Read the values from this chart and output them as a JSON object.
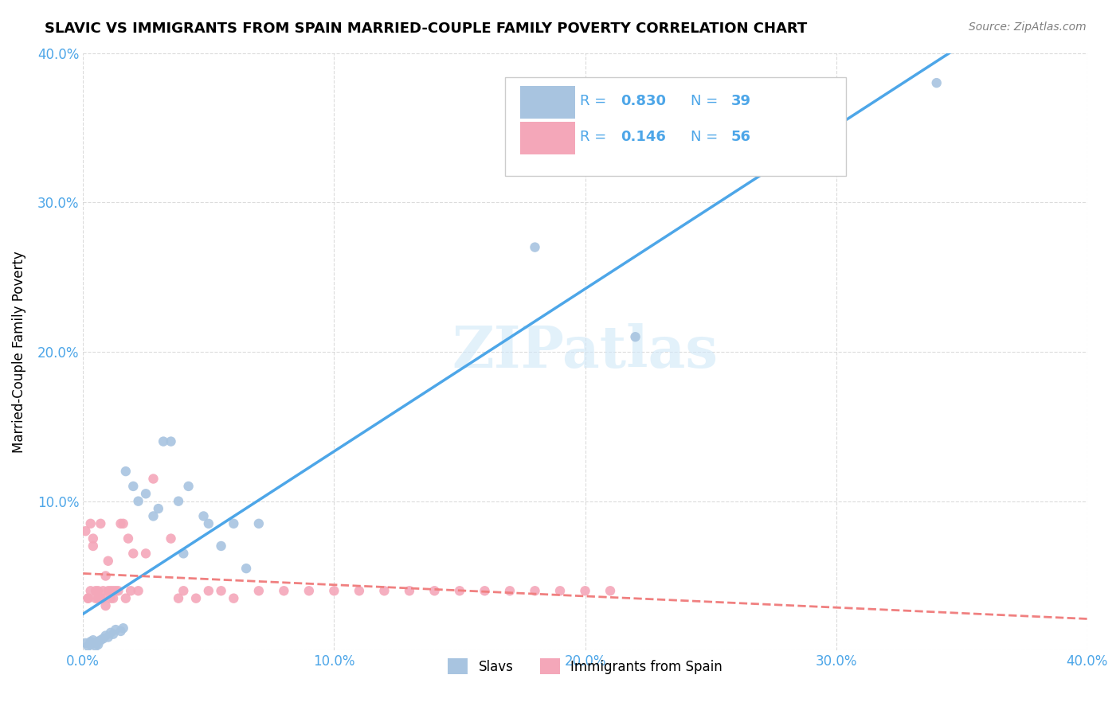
{
  "title": "SLAVIC VS IMMIGRANTS FROM SPAIN MARRIED-COUPLE FAMILY POVERTY CORRELATION CHART",
  "source": "Source: ZipAtlas.com",
  "xlabel": "",
  "ylabel": "Married-Couple Family Poverty",
  "xlim": [
    0,
    0.4
  ],
  "ylim": [
    0,
    0.4
  ],
  "xtick_labels": [
    "0.0%",
    "10.0%",
    "20.0%",
    "30.0%",
    "40.0%"
  ],
  "ytick_labels": [
    "",
    "10.0%",
    "20.0%",
    "30.0%",
    "40.0%"
  ],
  "slavs_color": "#a8c4e0",
  "immigrants_color": "#f4a7b9",
  "slavs_line_color": "#4da6e8",
  "immigrants_line_color": "#f08080",
  "slavs_R": 0.83,
  "slavs_N": 39,
  "immigrants_R": 0.146,
  "immigrants_N": 56,
  "legend_label_slavs": "Slavs",
  "legend_label_immigrants": "Immigrants from Spain",
  "watermark": "ZIPatlas",
  "slavs_x": [
    0.001,
    0.002,
    0.003,
    0.003,
    0.004,
    0.004,
    0.005,
    0.005,
    0.006,
    0.006,
    0.007,
    0.008,
    0.009,
    0.01,
    0.011,
    0.012,
    0.013,
    0.015,
    0.016,
    0.017,
    0.02,
    0.022,
    0.025,
    0.028,
    0.03,
    0.032,
    0.035,
    0.038,
    0.04,
    0.042,
    0.048,
    0.05,
    0.055,
    0.06,
    0.065,
    0.07,
    0.18,
    0.22,
    0.34
  ],
  "slavs_y": [
    0.005,
    0.003,
    0.004,
    0.006,
    0.005,
    0.007,
    0.005,
    0.003,
    0.004,
    0.006,
    0.007,
    0.008,
    0.01,
    0.009,
    0.012,
    0.011,
    0.014,
    0.013,
    0.015,
    0.12,
    0.11,
    0.1,
    0.105,
    0.09,
    0.095,
    0.14,
    0.14,
    0.1,
    0.065,
    0.11,
    0.09,
    0.085,
    0.07,
    0.085,
    0.055,
    0.085,
    0.27,
    0.21,
    0.38
  ],
  "immigrants_x": [
    0.001,
    0.002,
    0.002,
    0.003,
    0.003,
    0.004,
    0.004,
    0.005,
    0.005,
    0.006,
    0.006,
    0.007,
    0.007,
    0.008,
    0.008,
    0.009,
    0.009,
    0.01,
    0.01,
    0.011,
    0.011,
    0.012,
    0.012,
    0.013,
    0.014,
    0.015,
    0.016,
    0.017,
    0.018,
    0.019,
    0.02,
    0.022,
    0.025,
    0.028,
    0.035,
    0.038,
    0.04,
    0.045,
    0.05,
    0.055,
    0.06,
    0.07,
    0.08,
    0.09,
    0.1,
    0.11,
    0.12,
    0.13,
    0.14,
    0.15,
    0.16,
    0.17,
    0.18,
    0.19,
    0.2,
    0.21
  ],
  "immigrants_y": [
    0.08,
    0.035,
    0.035,
    0.04,
    0.085,
    0.075,
    0.07,
    0.04,
    0.035,
    0.04,
    0.035,
    0.035,
    0.085,
    0.035,
    0.04,
    0.05,
    0.03,
    0.04,
    0.06,
    0.035,
    0.04,
    0.035,
    0.04,
    0.04,
    0.04,
    0.085,
    0.085,
    0.035,
    0.075,
    0.04,
    0.065,
    0.04,
    0.065,
    0.115,
    0.075,
    0.035,
    0.04,
    0.035,
    0.04,
    0.04,
    0.035,
    0.04,
    0.04,
    0.04,
    0.04,
    0.04,
    0.04,
    0.04,
    0.04,
    0.04,
    0.04,
    0.04,
    0.04,
    0.04,
    0.04,
    0.04
  ]
}
